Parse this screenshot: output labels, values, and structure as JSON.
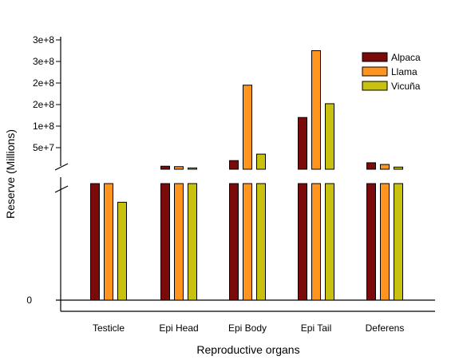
{
  "chart_data": {
    "type": "bar",
    "title": "",
    "xlabel": "Reproductive organs",
    "ylabel": "Reserve (Millions)",
    "axis_break": true,
    "upper_ylim": [
      0,
      300000000
    ],
    "upper_ticks": [
      {
        "value": 50000000,
        "label": "5e+7"
      },
      {
        "value": 100000000,
        "label": "1e+8"
      },
      {
        "value": 150000000,
        "label": "2e+8"
      },
      {
        "value": 200000000,
        "label": "2e+8"
      },
      {
        "value": 250000000,
        "label": "3e+8"
      },
      {
        "value": 300000000,
        "label": "3e+8"
      }
    ],
    "lower_ticks": [
      {
        "value": 0,
        "label": "0"
      }
    ],
    "categories": [
      "Testicle",
      "Epi Head",
      "Epi Body",
      "Epi Tail",
      "Deferens"
    ],
    "series": [
      {
        "name": "Alpaca",
        "color": "#7b0a0a",
        "values": [
          null,
          7000000,
          20000000,
          120000000,
          15000000
        ],
        "lower_full": [
          true,
          true,
          true,
          true,
          true
        ]
      },
      {
        "name": "Llama",
        "color": "#ff951f",
        "values": [
          null,
          6000000,
          195000000,
          275000000,
          11000000
        ],
        "lower_full": [
          true,
          true,
          true,
          true,
          true
        ]
      },
      {
        "name": "Vicuña",
        "color": "#c9c10f",
        "values": [
          null,
          3000000,
          35000000,
          152000000,
          5000000
        ],
        "lower_full": [
          false,
          true,
          true,
          true,
          true
        ]
      }
    ],
    "lower_partial_fraction": [
      null,
      null,
      0.84
    ],
    "legend_position": "top-right",
    "grid": false
  }
}
